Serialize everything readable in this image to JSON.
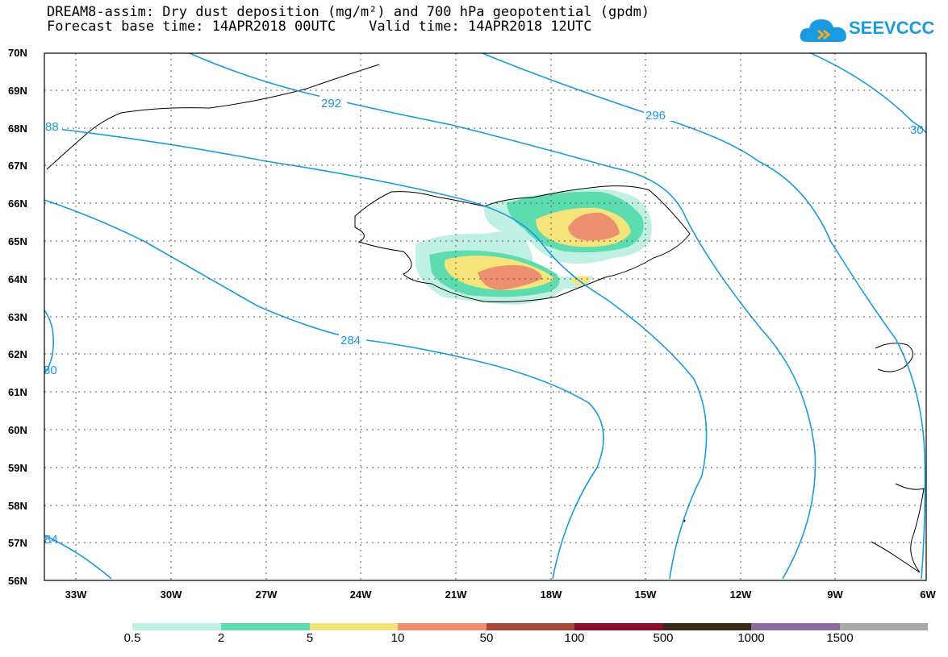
{
  "header": {
    "title_line1": "DREAM8-assim: Dry dust deposition (mg/m²) and 700 hPa geopotential (gpdm)",
    "title_line2": "Forecast base time: 14APR2018 00UTC    Valid time: 14APR2018 12UTC"
  },
  "logo": {
    "text": "SEEVCCC",
    "icon": "cloud-icon"
  },
  "map": {
    "lat_labels": [
      "70N",
      "69N",
      "68N",
      "67N",
      "66N",
      "65N",
      "64N",
      "63N",
      "62N",
      "61N",
      "60N",
      "59N",
      "58N",
      "57N",
      "56N"
    ],
    "lon_labels": [
      "33W",
      "30W",
      "27W",
      "24W",
      "21W",
      "18W",
      "15W",
      "12W",
      "9W",
      "6W"
    ],
    "contour_labels": [
      "292",
      "296",
      "30",
      "88",
      "284",
      "80",
      "84"
    ],
    "contour_color": "#1a9ae0"
  },
  "colorbar": {
    "labels": [
      "0.5",
      "2",
      "5",
      "10",
      "50",
      "100",
      "500",
      "1000",
      "1500"
    ],
    "colors": [
      "#c0f0e4",
      "#5ddcb0",
      "#f4e47a",
      "#ec9070",
      "#a6483c",
      "#8c0f2a",
      "#3c2a18",
      "#8e6aa0",
      "#a8a8a8"
    ]
  }
}
